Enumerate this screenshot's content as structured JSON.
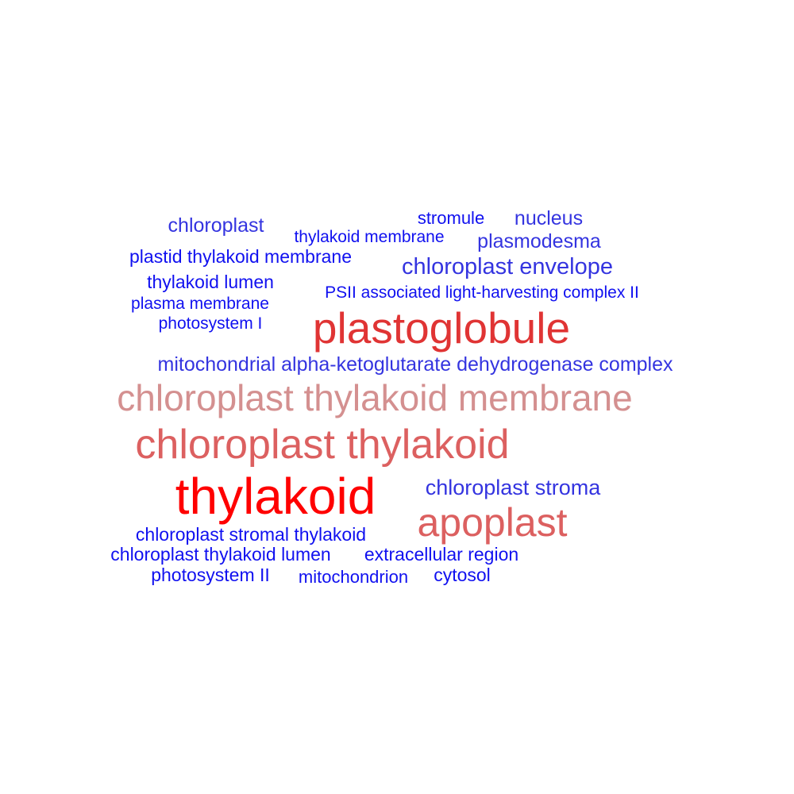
{
  "terms": [
    {
      "text": "chloroplast",
      "color": "#3434e0"
    },
    {
      "text": "thylakoid membrane",
      "color": "#1010f0"
    },
    {
      "text": "stromule",
      "color": "#1010f0"
    },
    {
      "text": "nucleus",
      "color": "#3434e0"
    },
    {
      "text": "plasmodesma",
      "color": "#3434e0"
    },
    {
      "text": "plastid thylakoid membrane",
      "color": "#1010f0"
    },
    {
      "text": "chloroplast envelope",
      "color": "#3434e0"
    },
    {
      "text": "thylakoid lumen",
      "color": "#1010f0"
    },
    {
      "text": "PSII associated light-harvesting complex II",
      "color": "#1010f0"
    },
    {
      "text": "plasma membrane",
      "color": "#1010f0"
    },
    {
      "text": "photosystem I",
      "color": "#1010f0"
    },
    {
      "text": "plastoglobule",
      "color": "#e03434"
    },
    {
      "text": "mitochondrial alpha-ketoglutarate dehydrogenase complex",
      "color": "#3434e0"
    },
    {
      "text": "chloroplast thylakoid membrane",
      "color": "#d49090"
    },
    {
      "text": "chloroplast thylakoid",
      "color": "#dc6060"
    },
    {
      "text": "thylakoid",
      "color": "#ff0000"
    },
    {
      "text": "chloroplast stroma",
      "color": "#3434e0"
    },
    {
      "text": "apoplast",
      "color": "#dc6060"
    },
    {
      "text": "chloroplast stromal thylakoid",
      "color": "#1010f0"
    },
    {
      "text": "chloroplast thylakoid lumen",
      "color": "#1010f0"
    },
    {
      "text": "extracellular region",
      "color": "#1010f0"
    },
    {
      "text": "photosystem II",
      "color": "#1010f0"
    },
    {
      "text": "mitochondrion",
      "color": "#1010f0"
    },
    {
      "text": "cytosol",
      "color": "#1010f0"
    }
  ]
}
